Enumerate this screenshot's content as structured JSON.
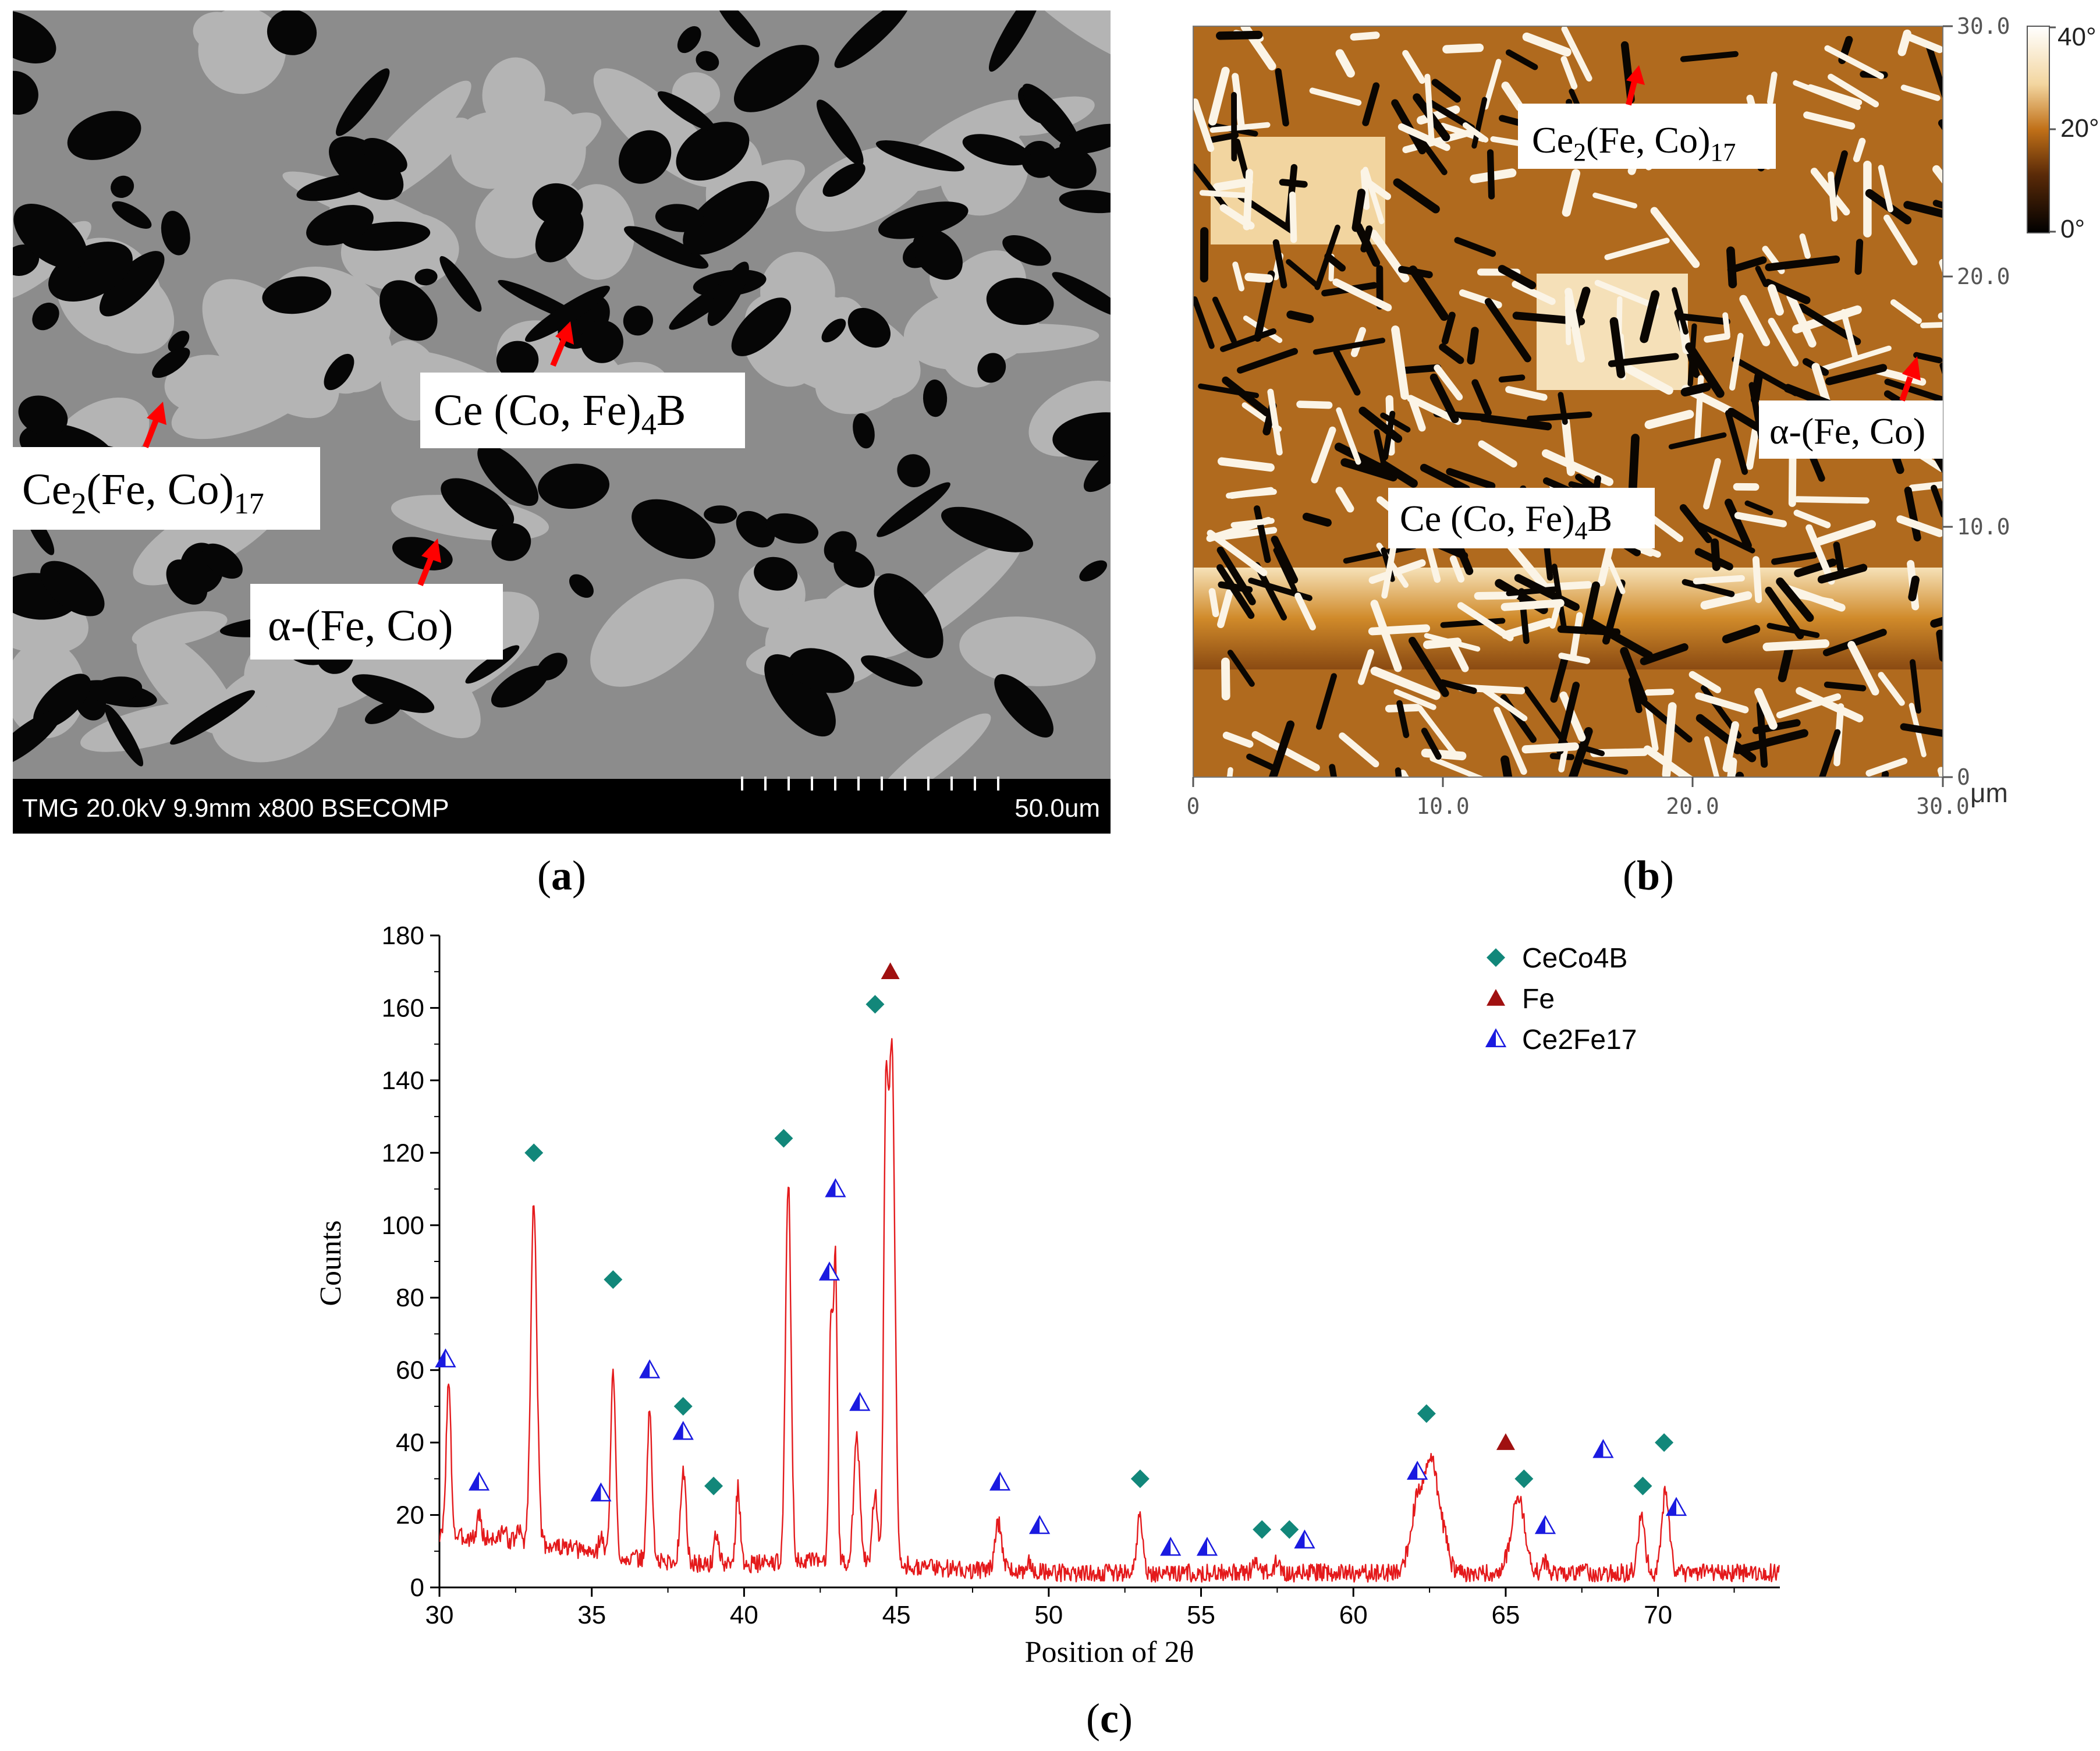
{
  "panel_a": {
    "caption": {
      "open": "(",
      "letter": "a",
      "close": ")"
    },
    "labels": {
      "matrix": {
        "base": "Ce (Co, Fe)",
        "sub": "4",
        "tail": "B"
      },
      "ce2fe17": {
        "base": "Ce",
        "sub1": "2",
        "mid": "(Fe, Co)",
        "sub2": "17"
      },
      "alpha": {
        "text": "α-(Fe, Co)"
      }
    },
    "info_bar": {
      "left": "TMG 20.0kV 9.9mm x800 BSECOMP",
      "scale": "50.0um"
    }
  },
  "panel_b": {
    "caption": {
      "open": "(",
      "letter": "b",
      "close": ")"
    },
    "labels": {
      "ce2fe17": {
        "base": "Ce",
        "sub1": "2",
        "mid": "(Fe, Co)",
        "sub2": "17"
      },
      "alpha": {
        "text": "α-(Fe, Co)"
      },
      "matrix": {
        "base": "Ce (Co, Fe)",
        "sub": "4",
        "tail": "B"
      }
    },
    "x_ticks": [
      "0",
      "10.0",
      "20.0",
      "30.0"
    ],
    "y_ticks": [
      "30.0",
      "20.0",
      "10.0",
      "0"
    ],
    "unit": "μm",
    "colorbar": {
      "top": "40°",
      "mid": "20°",
      "bottom": "0°"
    }
  },
  "panel_c": {
    "caption": {
      "open": "(",
      "letter": "c",
      "close": ")"
    },
    "chart_data": {
      "type": "line",
      "title": "",
      "xlabel": "Position of 2θ",
      "ylabel": "Counts",
      "xlim": [
        30,
        74
      ],
      "ylim": [
        0,
        180
      ],
      "x_ticks": [
        30,
        35,
        40,
        45,
        50,
        55,
        60,
        65,
        70
      ],
      "y_ticks": [
        0,
        20,
        40,
        60,
        80,
        100,
        120,
        140,
        160,
        180
      ],
      "line_color": "#e41a1c",
      "background_noise": 5,
      "peaks": [
        {
          "x": 30.3,
          "h": 42,
          "w": 0.08
        },
        {
          "x": 31.3,
          "h": 7,
          "w": 0.06
        },
        {
          "x": 32.1,
          "h": 3,
          "w": 0.07
        },
        {
          "x": 32.6,
          "h": 3,
          "w": 0.07
        },
        {
          "x": 33.1,
          "h": 94,
          "w": 0.1
        },
        {
          "x": 35.3,
          "h": 5,
          "w": 0.07
        },
        {
          "x": 35.7,
          "h": 50,
          "w": 0.08
        },
        {
          "x": 36.9,
          "h": 41,
          "w": 0.08
        },
        {
          "x": 38.0,
          "h": 26,
          "w": 0.09
        },
        {
          "x": 39.1,
          "h": 9,
          "w": 0.07
        },
        {
          "x": 39.8,
          "h": 21,
          "w": 0.07
        },
        {
          "x": 41.45,
          "h": 105,
          "w": 0.09
        },
        {
          "x": 42.85,
          "h": 68,
          "w": 0.06
        },
        {
          "x": 43.0,
          "h": 84,
          "w": 0.06
        },
        {
          "x": 43.7,
          "h": 34,
          "w": 0.1
        },
        {
          "x": 44.3,
          "h": 20,
          "w": 0.08
        },
        {
          "x": 44.65,
          "h": 117,
          "w": 0.07
        },
        {
          "x": 44.85,
          "h": 143,
          "w": 0.1
        },
        {
          "x": 48.35,
          "h": 13,
          "w": 0.12
        },
        {
          "x": 49.3,
          "h": 3,
          "w": 0.08
        },
        {
          "x": 53.0,
          "h": 16,
          "w": 0.09
        },
        {
          "x": 56.8,
          "h": 3,
          "w": 0.1
        },
        {
          "x": 57.5,
          "h": 3,
          "w": 0.1
        },
        {
          "x": 62.15,
          "h": 21,
          "w": 0.25
        },
        {
          "x": 62.6,
          "h": 27,
          "w": 0.2
        },
        {
          "x": 63.0,
          "h": 8,
          "w": 0.15
        },
        {
          "x": 65.4,
          "h": 21,
          "w": 0.22
        },
        {
          "x": 66.3,
          "h": 3,
          "w": 0.1
        },
        {
          "x": 69.45,
          "h": 15,
          "w": 0.12
        },
        {
          "x": 70.25,
          "h": 23,
          "w": 0.12
        }
      ],
      "series": [
        {
          "name": "CeCo4B",
          "marker": "diamond",
          "color": "#12877a",
          "points": [
            [
              33.1,
              120
            ],
            [
              35.7,
              85
            ],
            [
              38.0,
              50
            ],
            [
              39.0,
              28
            ],
            [
              41.3,
              124
            ],
            [
              44.3,
              161
            ],
            [
              53.0,
              30
            ],
            [
              57.0,
              16
            ],
            [
              57.9,
              16
            ],
            [
              62.4,
              48
            ],
            [
              65.6,
              30
            ],
            [
              69.5,
              28
            ],
            [
              70.2,
              40
            ]
          ]
        },
        {
          "name": "Fe",
          "marker": "triangle",
          "color": "#a01010",
          "points": [
            [
              44.8,
              170
            ],
            [
              65.0,
              40
            ]
          ]
        },
        {
          "name": "Ce2Fe17",
          "marker": "half-triangle",
          "color": "#1a1ae0",
          "points": [
            [
              30.2,
              63
            ],
            [
              31.3,
              29
            ],
            [
              35.3,
              26
            ],
            [
              36.9,
              60
            ],
            [
              38.0,
              43
            ],
            [
              42.8,
              87
            ],
            [
              43.0,
              110
            ],
            [
              43.8,
              51
            ],
            [
              48.4,
              29
            ],
            [
              49.7,
              17
            ],
            [
              54.0,
              11
            ],
            [
              55.2,
              11
            ],
            [
              58.4,
              13
            ],
            [
              62.1,
              32
            ],
            [
              66.3,
              17
            ],
            [
              68.2,
              38
            ],
            [
              70.6,
              22
            ]
          ]
        }
      ],
      "legend": [
        "CeCo4B",
        "Fe",
        "Ce2Fe17"
      ],
      "legend_position": "top-right"
    }
  }
}
